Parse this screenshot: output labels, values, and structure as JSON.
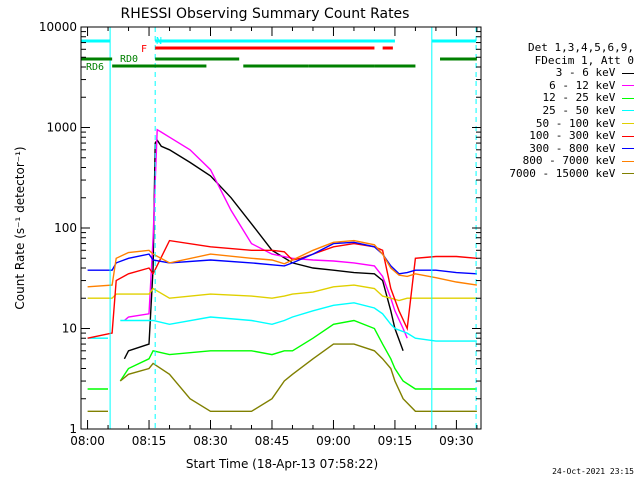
{
  "chart_data": {
    "type": "line",
    "title": "RHESSI Observing Summary Count Rates",
    "xlabel": "Start Time (18-Apr-13 07:58:22)",
    "ylabel": "Count Rate (s⁻¹ detector⁻¹)",
    "y_scale": "log",
    "ylim": [
      1,
      10000
    ],
    "x_ticks": [
      "08:00",
      "08:15",
      "08:30",
      "08:45",
      "09:00",
      "09:15",
      "09:30"
    ],
    "x_tick_minutes": [
      0,
      15,
      30,
      45,
      60,
      75,
      90
    ],
    "xlim_minutes": [
      -1.6,
      96
    ],
    "y_ticks": [
      "1",
      "10",
      "100",
      "1000",
      "10000"
    ],
    "legend_header": [
      "Det 1,3,4,5,6,9,",
      "FDecim 1, Att 0"
    ],
    "series": [
      {
        "name": "3 - 6 keV",
        "color": "#000000",
        "x": [
          0,
          8,
          9,
          10,
          15,
          16,
          16.5,
          17,
          18,
          20,
          25,
          30,
          35,
          40,
          45,
          50,
          55,
          60,
          65,
          70,
          72,
          74,
          75,
          77,
          78,
          95
        ],
        "y": [
          null,
          null,
          5,
          6,
          7,
          40,
          700,
          750,
          650,
          600,
          450,
          330,
          200,
          110,
          60,
          45,
          40,
          38,
          36,
          35,
          30,
          15,
          10,
          6,
          null,
          null
        ]
      },
      {
        "name": "6 - 12 keV",
        "color": "#ff00ff",
        "x": [
          0,
          8,
          9,
          10,
          15,
          16,
          17,
          18,
          20,
          25,
          30,
          35,
          40,
          45,
          50,
          55,
          60,
          65,
          70,
          72,
          74,
          75,
          77,
          78,
          95
        ],
        "y": [
          null,
          null,
          12,
          13,
          14,
          80,
          950,
          900,
          800,
          600,
          380,
          150,
          70,
          55,
          50,
          48,
          47,
          45,
          42,
          33,
          20,
          15,
          10,
          8,
          null
        ]
      },
      {
        "name": "12 - 25 keV",
        "color": "#00ff00",
        "x": [
          0,
          1,
          5,
          6,
          8,
          10,
          15,
          16,
          20,
          30,
          40,
          45,
          48,
          50,
          55,
          60,
          65,
          70,
          72,
          74,
          75,
          77,
          80,
          82,
          85,
          90,
          92,
          95
        ],
        "y": [
          2.5,
          2.5,
          2.5,
          null,
          3,
          4,
          5,
          6,
          5.5,
          6,
          6,
          5.5,
          6,
          6,
          8,
          11,
          12,
          10,
          7,
          5,
          4,
          3,
          2.5,
          2.5,
          2.5,
          2.5,
          2.5,
          2.5
        ]
      },
      {
        "name": "25 - 50 keV",
        "color": "#00ffff",
        "x": [
          0,
          5,
          6,
          8,
          10,
          15,
          16,
          20,
          30,
          40,
          45,
          48,
          50,
          55,
          60,
          65,
          70,
          72,
          74,
          75,
          78,
          80,
          85,
          90,
          95
        ],
        "y": [
          8,
          8,
          null,
          12,
          12,
          12,
          12,
          11,
          13,
          12,
          11,
          12,
          13,
          15,
          17,
          18,
          16,
          14,
          11,
          10,
          9,
          8,
          7.5,
          7.5,
          7.5
        ]
      },
      {
        "name": "50 - 100 keV",
        "color": "#e0d000",
        "x": [
          0,
          6,
          7,
          10,
          15,
          16,
          20,
          30,
          40,
          45,
          48,
          50,
          55,
          60,
          65,
          70,
          72,
          74,
          76,
          78,
          80,
          85,
          90,
          95
        ],
        "y": [
          20,
          20,
          22,
          22,
          22,
          25,
          20,
          22,
          21,
          20,
          21,
          22,
          23,
          26,
          27,
          25,
          21,
          20,
          19,
          20,
          20,
          20,
          20,
          20
        ]
      },
      {
        "name": "100 - 300 keV",
        "color": "#ff0000",
        "x": [
          0,
          6,
          7,
          10,
          15,
          16,
          20,
          30,
          40,
          45,
          48,
          50,
          52,
          55,
          60,
          65,
          70,
          72,
          74,
          76,
          78,
          80,
          85,
          90,
          95
        ],
        "y": [
          8,
          9,
          30,
          35,
          40,
          35,
          75,
          65,
          60,
          60,
          58,
          48,
          50,
          55,
          65,
          70,
          65,
          60,
          25,
          15,
          10,
          50,
          52,
          52,
          50
        ]
      },
      {
        "name": "300 - 800 keV",
        "color": "#0000ff",
        "x": [
          0,
          6,
          7,
          10,
          15,
          16,
          20,
          30,
          40,
          45,
          48,
          50,
          55,
          60,
          65,
          70,
          72,
          74,
          76,
          78,
          80,
          85,
          90,
          95
        ],
        "y": [
          38,
          38,
          45,
          50,
          55,
          48,
          45,
          48,
          45,
          43,
          42,
          45,
          55,
          70,
          72,
          65,
          55,
          42,
          35,
          36,
          38,
          38,
          36,
          35
        ]
      },
      {
        "name": "800 - 7000 keV",
        "color": "#ff8000",
        "x": [
          0,
          6,
          7,
          10,
          15,
          16,
          20,
          30,
          40,
          45,
          48,
          50,
          55,
          60,
          65,
          70,
          72,
          74,
          76,
          78,
          80,
          85,
          90,
          95
        ],
        "y": [
          26,
          27,
          50,
          57,
          60,
          55,
          45,
          55,
          50,
          48,
          44,
          48,
          60,
          72,
          75,
          68,
          55,
          40,
          34,
          33,
          35,
          32,
          29,
          27
        ]
      },
      {
        "name": "7000 - 15000 keV",
        "color": "#808000",
        "x": [
          0,
          5,
          6,
          8,
          10,
          15,
          16,
          20,
          25,
          30,
          40,
          45,
          48,
          50,
          55,
          60,
          65,
          70,
          72,
          74,
          75,
          77,
          80,
          85,
          90,
          95
        ],
        "y": [
          1.5,
          1.5,
          null,
          3,
          3.5,
          4,
          4.5,
          3.5,
          2,
          1.5,
          1.5,
          2,
          3,
          3.5,
          5,
          7,
          7,
          6,
          5,
          4,
          3,
          2,
          1.5,
          1.5,
          1.5,
          1.5
        ]
      }
    ],
    "annotations": {
      "N": {
        "label": "N",
        "color": "#00ffff",
        "segments": [
          [
            -1.6,
            5.5
          ],
          [
            16.5,
            75
          ],
          [
            84,
            94.8
          ]
        ]
      },
      "F": {
        "label": "F",
        "color": "#ff0000",
        "segments": [
          [
            16.5,
            70
          ],
          [
            72,
            74.5
          ]
        ]
      },
      "RD0": {
        "label": "RD0",
        "color": "#008000",
        "segments": [
          [
            -1.6,
            6
          ],
          [
            16.5,
            37
          ],
          [
            86,
            95
          ]
        ]
      },
      "RD6": {
        "label": "RD6",
        "color": "#008000",
        "segments": [
          [
            6,
            29
          ],
          [
            38,
            54
          ],
          [
            54,
            70
          ],
          [
            70,
            80
          ]
        ]
      }
    },
    "vlines_solid": [
      -1.6,
      5.5,
      84
    ],
    "vlines_dashed": [
      16.5,
      94.8
    ],
    "vline_color": "#00ffff"
  },
  "timestamp": "24-Oct-2021 23:15"
}
